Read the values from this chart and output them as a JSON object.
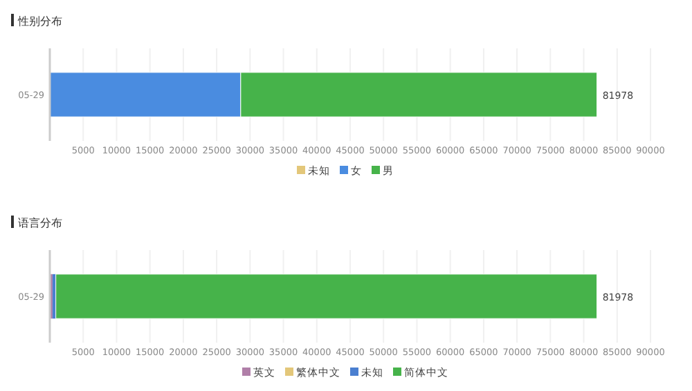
{
  "chart_data": [
    {
      "type": "bar",
      "title": "性别分布",
      "orientation": "horizontal",
      "stacked": true,
      "categories": [
        "05-29"
      ],
      "series": [
        {
          "name": "未知",
          "color": "#e3c77a",
          "values": [
            0
          ]
        },
        {
          "name": "女",
          "color": "#4a8ce0",
          "values": [
            28600
          ]
        },
        {
          "name": "男",
          "color": "#46b34a",
          "values": [
            53378
          ]
        }
      ],
      "totals": [
        "81978"
      ],
      "xlim": [
        0,
        90000
      ],
      "xticks": [
        5000,
        10000,
        15000,
        20000,
        25000,
        30000,
        35000,
        40000,
        45000,
        50000,
        55000,
        60000,
        65000,
        70000,
        75000,
        80000,
        85000,
        90000
      ],
      "grid": "x",
      "legend": "bottom"
    },
    {
      "type": "bar",
      "title": "语言分布",
      "orientation": "horizontal",
      "stacked": true,
      "categories": [
        "05-29"
      ],
      "series": [
        {
          "name": "英文",
          "color": "#b07fa8",
          "values": [
            400
          ]
        },
        {
          "name": "繁体中文",
          "color": "#e3c77a",
          "values": [
            0
          ]
        },
        {
          "name": "未知",
          "color": "#4a7fd0",
          "values": [
            500
          ]
        },
        {
          "name": "简体中文",
          "color": "#46b34a",
          "values": [
            81078
          ]
        }
      ],
      "totals": [
        "81978"
      ],
      "xlim": [
        0,
        90000
      ],
      "xticks": [
        5000,
        10000,
        15000,
        20000,
        25000,
        30000,
        35000,
        40000,
        45000,
        50000,
        55000,
        60000,
        65000,
        70000,
        75000,
        80000,
        85000,
        90000
      ],
      "grid": "x",
      "legend": "bottom"
    }
  ]
}
